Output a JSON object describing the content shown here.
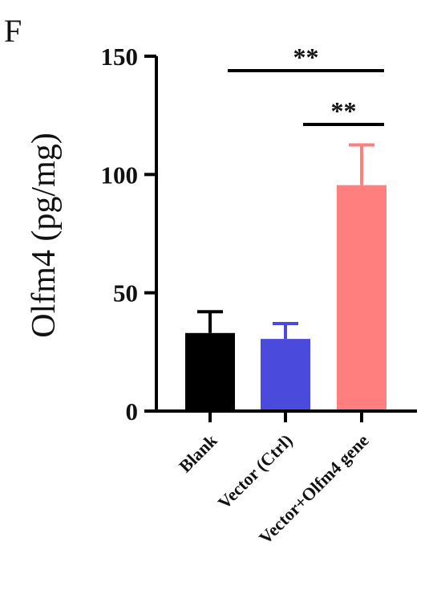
{
  "panel_label": "F",
  "chart_data": {
    "type": "bar",
    "categories": [
      "Blank",
      "Vector (Ctrl)",
      "Vector+Olfm4 gene"
    ],
    "values": [
      33,
      30.5,
      95.5
    ],
    "errors": [
      9,
      6.5,
      17
    ],
    "colors": [
      "#000000",
      "#4a4adc",
      "#ff7f7f"
    ],
    "title": "",
    "xlabel": "",
    "ylabel": "Olfm4 (pg/mg)",
    "ylim": [
      0,
      150
    ],
    "yticks": [
      0,
      50,
      100,
      150
    ],
    "yticklabels": [
      "0",
      "50",
      "100",
      "150"
    ],
    "grid": false,
    "significance": [
      {
        "from": 0,
        "to": 2,
        "label": "**"
      },
      {
        "from": 1,
        "to": 2,
        "label": "**"
      }
    ]
  }
}
